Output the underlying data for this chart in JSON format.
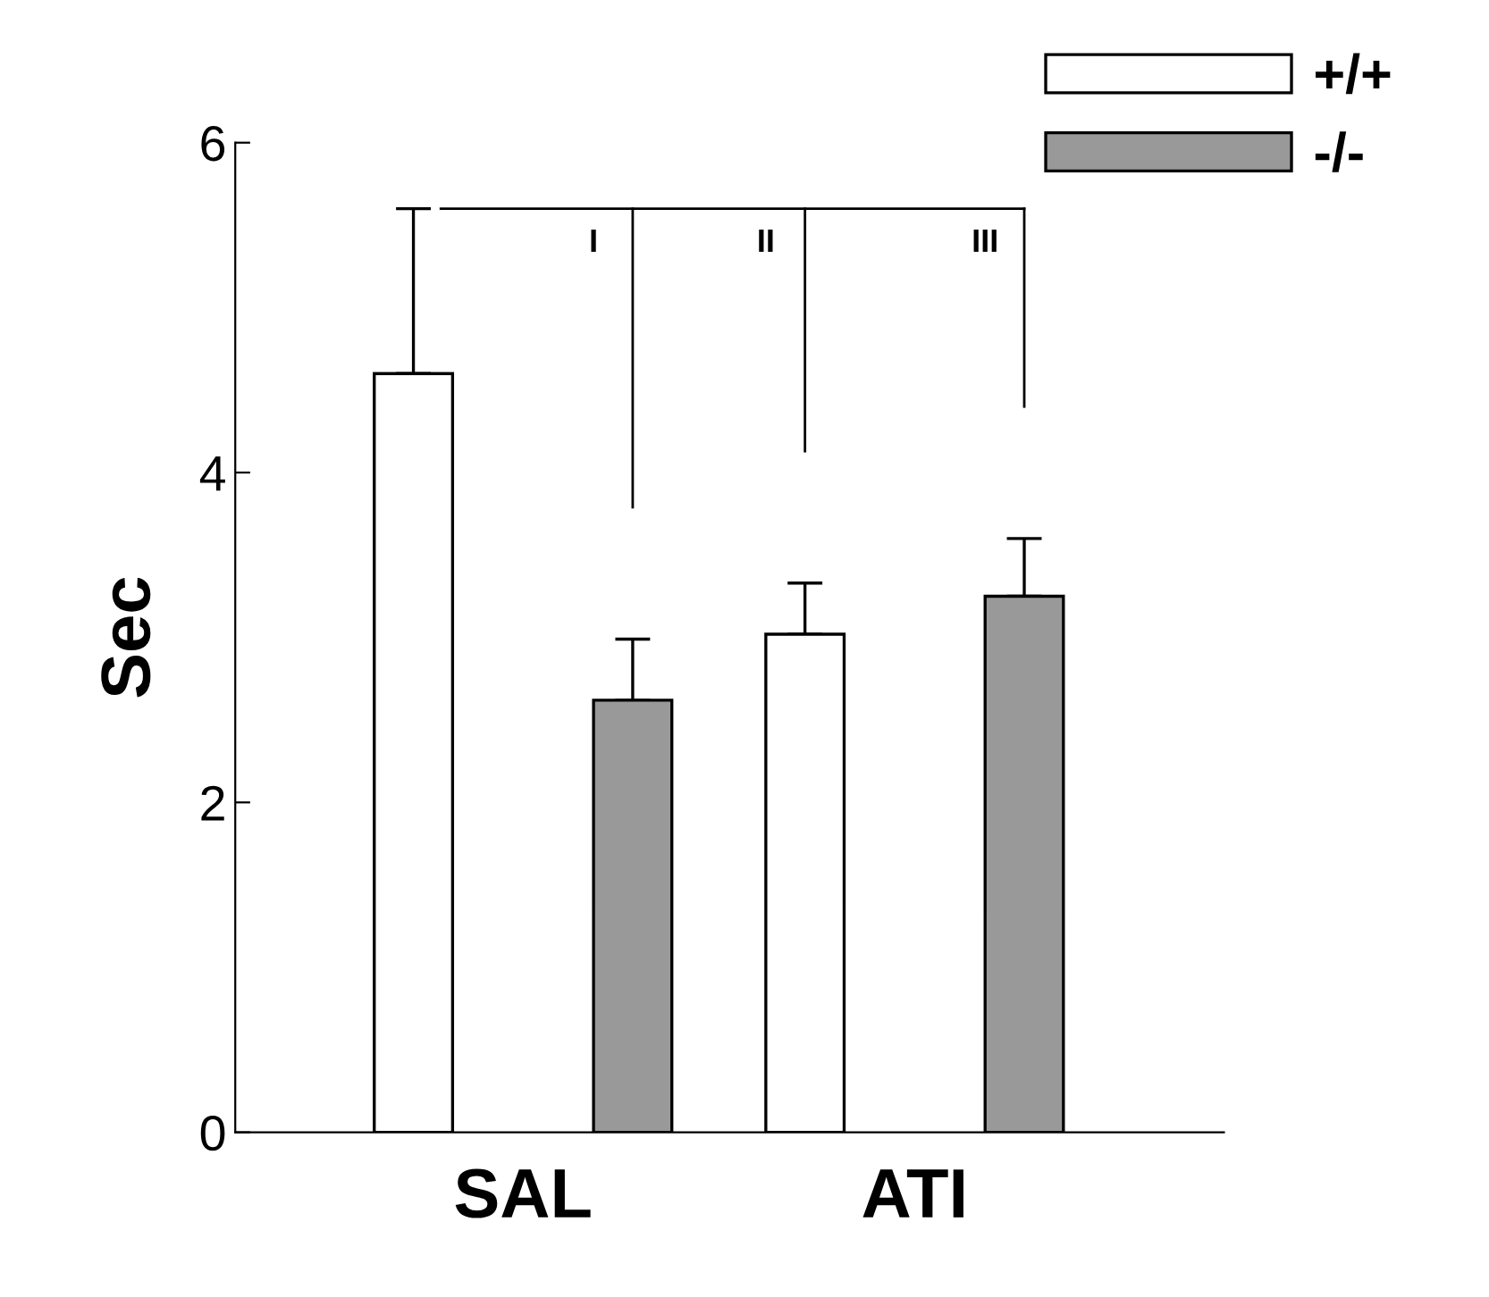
{
  "chart_data": {
    "type": "bar",
    "categories": [
      "SAL",
      "ATI"
    ],
    "ylabel": "Sec",
    "ylim": [
      0,
      6
    ],
    "yticks": [
      0,
      2,
      4,
      6
    ],
    "series": [
      {
        "name": "+/+",
        "color": "#ffffff",
        "values": [
          4.6,
          3.02
        ],
        "errors": [
          1.0,
          0.31
        ]
      },
      {
        "name": "-/-",
        "color": "#999999",
        "values": [
          2.62,
          3.25
        ],
        "errors": [
          0.37,
          0.35
        ]
      }
    ],
    "annotations": [
      "I",
      "II",
      "III"
    ],
    "legend": "top right",
    "grid": false
  }
}
